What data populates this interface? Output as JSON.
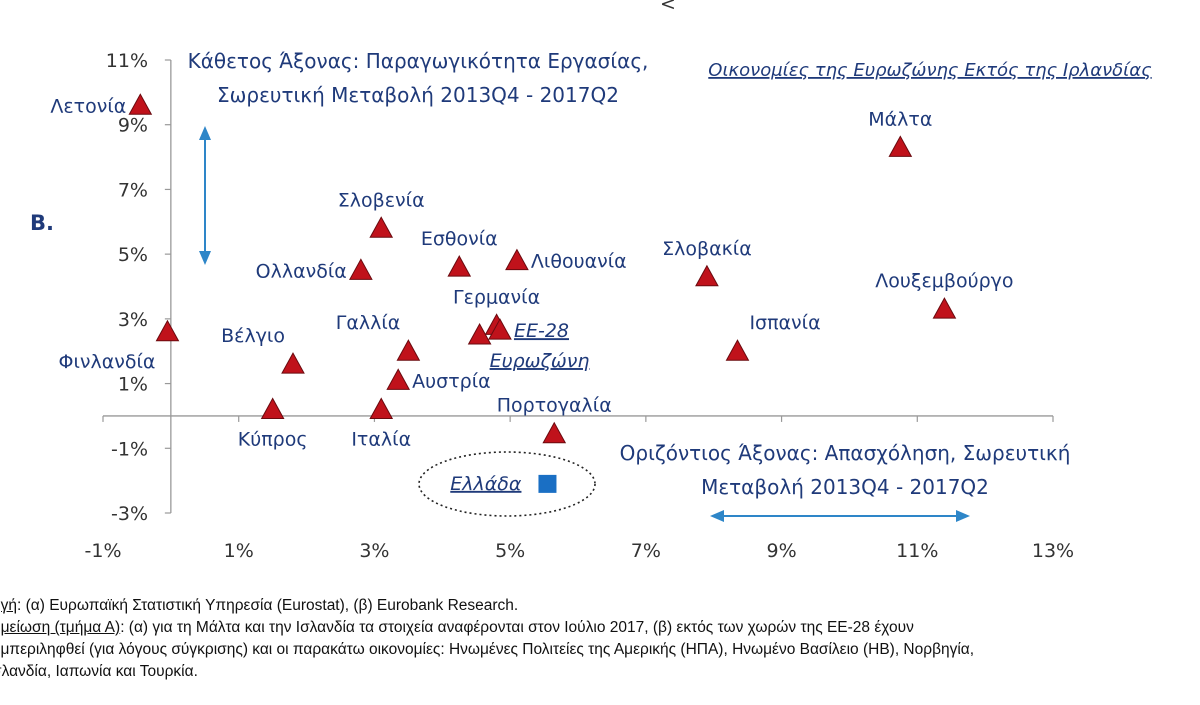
{
  "colors": {
    "marker": "#c0121b",
    "greece": "#1a6fc4",
    "text": "#1f3a7a",
    "arrow": "#2e86c8",
    "axis": "#999999"
  },
  "top_mark": "<",
  "panel_label": "B.",
  "chart_data": {
    "type": "scatter",
    "title": "Οικονομίες της Ευρωζώνης Εκτός της Ιρλανδίας",
    "ylabel": [
      "Κάθετος Άξονας: Παραγωγικότητα Εργασίας,",
      "Σωρευτική Μεταβολή 2013Q4 - 2017Q2"
    ],
    "xlabel": [
      "Οριζόντιος Άξονας: Απασχόληση, Σωρευτική",
      "Μεταβολή 2013Q4 - 2017Q2"
    ],
    "xlim": [
      -1,
      13
    ],
    "ylim": [
      -3,
      11
    ],
    "x_ticks": [
      -1,
      1,
      3,
      5,
      7,
      9,
      11,
      13
    ],
    "x_tick_labels": [
      "-1%",
      "1%",
      "3%",
      "5%",
      "7%",
      "9%",
      "11%",
      "13%"
    ],
    "y_ticks": [
      11,
      9,
      7,
      5,
      3,
      1,
      -1,
      -3
    ],
    "y_tick_labels": [
      "11%",
      "9%",
      "7%",
      "5%",
      "3%",
      "1%",
      "-1%",
      "-3%"
    ],
    "points": [
      {
        "name": "Λετονία",
        "x": -0.45,
        "y": 9.6,
        "label_pos": "left"
      },
      {
        "name": "Φινλανδία",
        "x": -0.05,
        "y": 2.6,
        "label_pos": "below-left"
      },
      {
        "name": "Βέλγιο",
        "x": 1.8,
        "y": 1.6,
        "label_pos": "above-left"
      },
      {
        "name": "Κύπρος",
        "x": 1.5,
        "y": 0.2,
        "label_pos": "below"
      },
      {
        "name": "Ολλανδία",
        "x": 2.8,
        "y": 4.5,
        "label_pos": "left"
      },
      {
        "name": "Σλοβενία",
        "x": 3.1,
        "y": 5.8,
        "label_pos": "above"
      },
      {
        "name": "Γαλλία",
        "x": 3.5,
        "y": 2.0,
        "label_pos": "above-left"
      },
      {
        "name": "Αυστρία",
        "x": 3.35,
        "y": 1.1,
        "label_pos": "right"
      },
      {
        "name": "Ιταλία",
        "x": 3.1,
        "y": 0.2,
        "label_pos": "below"
      },
      {
        "name": "Εσθονία",
        "x": 4.25,
        "y": 4.6,
        "label_pos": "above"
      },
      {
        "name": "Λιθουανία",
        "x": 5.1,
        "y": 4.8,
        "label_pos": "right"
      },
      {
        "name": "Γερμανία",
        "x": 4.8,
        "y": 2.8,
        "label_pos": "above"
      },
      {
        "name": "ΕΕ-28",
        "x": 4.85,
        "y": 2.65,
        "label_pos": "right",
        "style": "italic"
      },
      {
        "name": "Ευρωζώνη",
        "x": 4.55,
        "y": 2.5,
        "label_pos": "below-right",
        "style": "italic"
      },
      {
        "name": "Πορτογαλία",
        "x": 5.65,
        "y": -0.55,
        "label_pos": "above"
      },
      {
        "name": "Σλοβακία",
        "x": 7.9,
        "y": 4.3,
        "label_pos": "above"
      },
      {
        "name": "Ισπανία",
        "x": 8.35,
        "y": 2.0,
        "label_pos": "above-right"
      },
      {
        "name": "Μάλτα",
        "x": 10.75,
        "y": 8.3,
        "label_pos": "above"
      },
      {
        "name": "Λουξεμβούργο",
        "x": 11.4,
        "y": 3.3,
        "label_pos": "above"
      }
    ],
    "highlight": {
      "name": "Ελλάδα",
      "x": 5.55,
      "y": -2.1,
      "marker": "square"
    }
  },
  "notes": {
    "source_label": "ηγή",
    "source_text": ": (α) Ευρωπαϊκή Στατιστική Υπηρεσία (Eurostat), (β) Eurobank Research.",
    "note_label": "ημείωση (τμήμα Α)",
    "note_text_1": ": (α) για τη Μάλτα και την Ισλανδία τα στοιχεία αναφέρονται στον Ιούλιο 2017, (β) εκτός των χωρών της ΕΕ-28 έχουν",
    "note_text_2": "υμπεριληφθεί (για λόγους σύγκρισης) και οι παρακάτω οικονομίες: Ηνωμένες Πολιτείες της Αμερικής (ΗΠΑ), Ηνωμένο Βασίλειο (ΗΒ), Νορβηγία,",
    "note_text_3": "σλανδία, Ιαπωνία και Τουρκία."
  }
}
